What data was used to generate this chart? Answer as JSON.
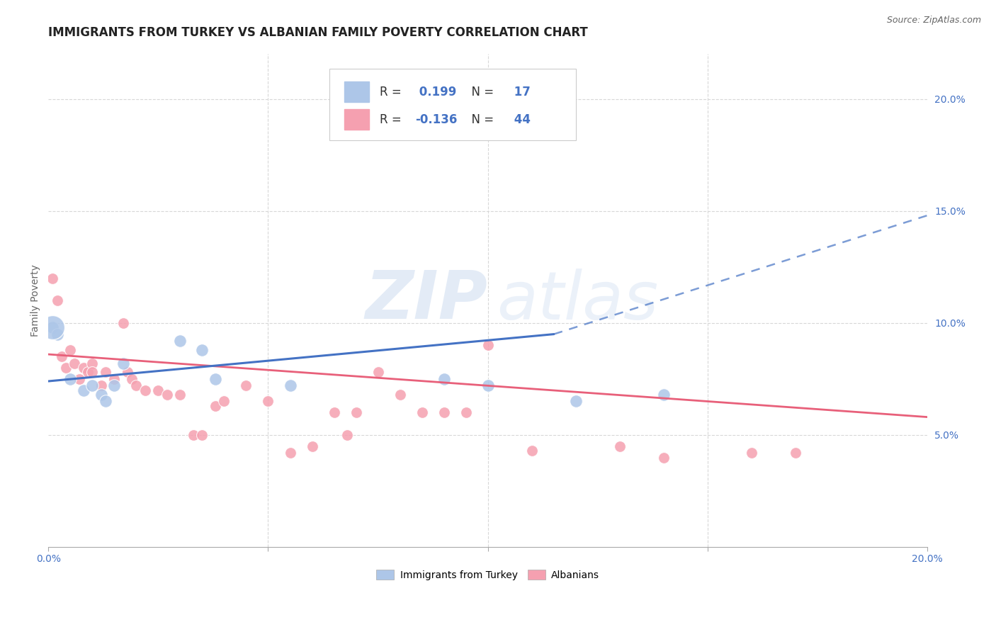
{
  "title": "IMMIGRANTS FROM TURKEY VS ALBANIAN FAMILY POVERTY CORRELATION CHART",
  "source": "Source: ZipAtlas.com",
  "ylabel": "Family Poverty",
  "legend_label1": "Immigrants from Turkey",
  "legend_label2": "Albanians",
  "r1": 0.199,
  "n1": 17,
  "r2": -0.136,
  "n2": 44,
  "color_turkey": "#adc6e8",
  "color_albanian": "#f5a0b0",
  "color_turkey_line": "#4472c4",
  "color_albanian_line": "#e8607a",
  "color_right_axis": "#4472c4",
  "watermark_zip": "ZIP",
  "watermark_atlas": "atlas",
  "turkey_x": [
    0.001,
    0.002,
    0.005,
    0.008,
    0.01,
    0.012,
    0.013,
    0.015,
    0.017,
    0.03,
    0.035,
    0.038,
    0.055,
    0.09,
    0.1,
    0.12,
    0.14
  ],
  "turkey_y": [
    0.098,
    0.095,
    0.075,
    0.07,
    0.072,
    0.068,
    0.065,
    0.072,
    0.082,
    0.092,
    0.088,
    0.075,
    0.072,
    0.075,
    0.072,
    0.065,
    0.068
  ],
  "turkey_sizes": [
    600,
    100,
    100,
    100,
    100,
    100,
    100,
    100,
    100,
    130,
    200,
    100,
    130,
    100,
    100,
    100,
    100
  ],
  "albanian_x": [
    0.001,
    0.002,
    0.003,
    0.004,
    0.005,
    0.006,
    0.007,
    0.008,
    0.009,
    0.01,
    0.01,
    0.012,
    0.013,
    0.015,
    0.017,
    0.018,
    0.019,
    0.02,
    0.022,
    0.025,
    0.027,
    0.03,
    0.033,
    0.035,
    0.038,
    0.04,
    0.045,
    0.05,
    0.055,
    0.06,
    0.065,
    0.068,
    0.07,
    0.075,
    0.08,
    0.085,
    0.09,
    0.095,
    0.1,
    0.11,
    0.13,
    0.14,
    0.16,
    0.17
  ],
  "albanian_y": [
    0.12,
    0.11,
    0.085,
    0.08,
    0.088,
    0.082,
    0.075,
    0.08,
    0.078,
    0.082,
    0.078,
    0.072,
    0.078,
    0.075,
    0.1,
    0.078,
    0.075,
    0.072,
    0.07,
    0.07,
    0.068,
    0.068,
    0.05,
    0.05,
    0.063,
    0.065,
    0.072,
    0.065,
    0.042,
    0.045,
    0.06,
    0.05,
    0.06,
    0.078,
    0.068,
    0.06,
    0.06,
    0.06,
    0.09,
    0.043,
    0.045,
    0.04,
    0.042,
    0.042
  ],
  "albanian_sizes": [
    100,
    100,
    100,
    100,
    100,
    100,
    100,
    100,
    100,
    100,
    100,
    100,
    100,
    100,
    100,
    100,
    100,
    100,
    100,
    100,
    100,
    100,
    100,
    100,
    100,
    100,
    100,
    100,
    100,
    100,
    100,
    100,
    100,
    100,
    100,
    100,
    100,
    100,
    100,
    100,
    100,
    100,
    100,
    100
  ],
  "turkey_trend": [
    0.074,
    0.1
  ],
  "albanian_trend": [
    0.085,
    0.058
  ],
  "xlim": [
    0.0,
    0.2
  ],
  "ylim": [
    0.0,
    0.22
  ],
  "yticks_right": [
    0.05,
    0.1,
    0.15,
    0.2
  ],
  "ytick_labels_right": [
    "5.0%",
    "10.0%",
    "15.0%",
    "20.0%"
  ],
  "grid_color": "#d8d8d8",
  "background": "#ffffff",
  "title_fontsize": 12,
  "source_fontsize": 9,
  "axis_fontsize": 10,
  "label_fontsize": 10,
  "legend_fontsize": 12
}
